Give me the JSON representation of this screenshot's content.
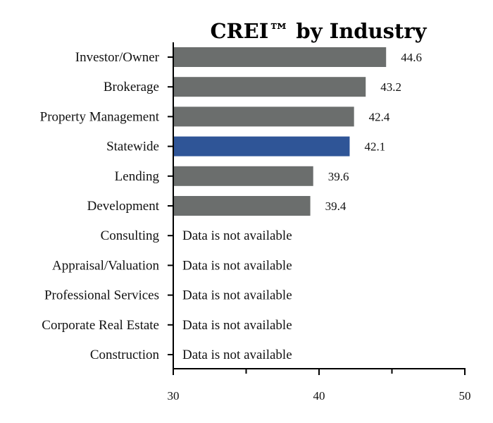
{
  "chart_data": {
    "type": "bar",
    "orientation": "horizontal",
    "title": "CREI™ by Industry",
    "categories": [
      "Investor/Owner",
      "Brokerage",
      "Property Management",
      "Statewide",
      "Lending",
      "Development",
      "Consulting",
      "Appraisal/Valuation",
      "Professional Services",
      "Corporate Real Estate",
      "Construction"
    ],
    "values": [
      44.6,
      43.2,
      42.4,
      42.1,
      39.6,
      39.4,
      null,
      null,
      null,
      null,
      null
    ],
    "value_labels": [
      "44.6",
      "43.2",
      "42.4",
      "42.1",
      "39.6",
      "39.4",
      "",
      "",
      "",
      "",
      ""
    ],
    "missing_label": "Data is not available",
    "highlight_category": "Statewide",
    "colors": {
      "default": "#6b6e6d",
      "highlight": "#2f5597"
    },
    "xlim": [
      30,
      50
    ],
    "xticks": [
      30,
      40,
      50
    ],
    "xtick_labels": [
      "30",
      "40",
      "50"
    ],
    "grid": false,
    "legend": "none"
  }
}
